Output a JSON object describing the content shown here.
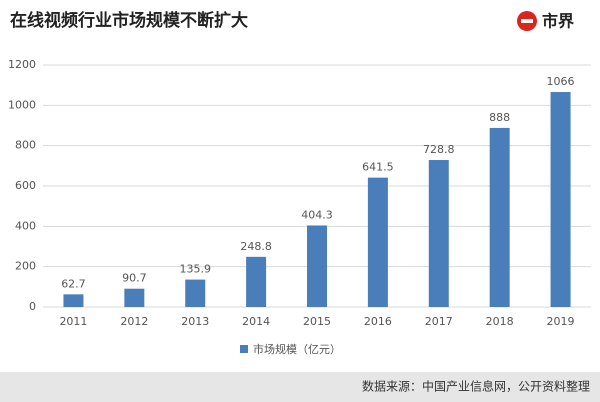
{
  "chart_data": {
    "type": "bar",
    "title": "在线视频行业市场规模不断扩大",
    "logo": "市界",
    "categories": [
      "2011",
      "2012",
      "2013",
      "2014",
      "2015",
      "2016",
      "2017",
      "2018",
      "2019"
    ],
    "series": [
      {
        "name": "市场规模（亿元）",
        "color": "#4a7ebb",
        "values": [
          62.7,
          90.7,
          135.9,
          248.8,
          404.3,
          641.5,
          728.8,
          888,
          1066
        ]
      }
    ],
    "ylim": [
      0,
      1200
    ],
    "yticks": [
      0,
      200,
      400,
      600,
      800,
      1000,
      1200
    ],
    "grid": true,
    "legend": "bottom",
    "source": "数据来源：中国产业信息网，公开资料整理"
  }
}
